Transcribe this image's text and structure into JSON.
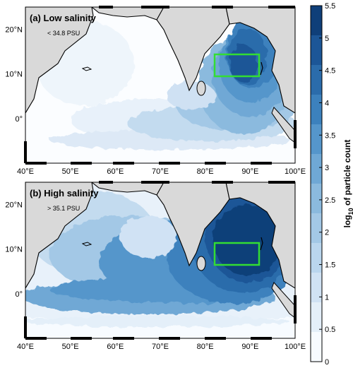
{
  "panels": [
    {
      "id": "a",
      "title": "(a)  Low salinity",
      "subtitle": "< 34.8 PSU",
      "y_tick_labels": [
        "20°N",
        "10°N",
        "0°"
      ],
      "x_tick_labels": [
        "40°E",
        "50°E",
        "60°E",
        "70°E",
        "80°E",
        "90°E",
        "100°E"
      ]
    },
    {
      "id": "b",
      "title": "(b)  High salinity",
      "subtitle": "> 35.1 PSU",
      "y_tick_labels": [
        "20°N",
        "10°N",
        "0°"
      ],
      "x_tick_labels": [
        "40°E",
        "50°E",
        "60°E",
        "70°E",
        "80°E",
        "90°E",
        "100°E"
      ]
    }
  ],
  "colorbar": {
    "label_main": "log",
    "label_sub": "10",
    "label_rest": " of particle count",
    "tick_labels": [
      "5.5",
      "5",
      "4.5",
      "4",
      "3.5",
      "3",
      "2.5",
      "2",
      "1.5",
      "1",
      "0.5",
      "0"
    ],
    "colors": [
      "#f7fbff",
      "#e4eff9",
      "#d0e2f4",
      "#bad6ee",
      "#a3c8e6",
      "#8bbade",
      "#6fa8d5",
      "#5596cb",
      "#3c81bd",
      "#2b6cab",
      "#1c5697",
      "#0f3f79"
    ]
  },
  "map": {
    "box_color": "#33dd33",
    "land_color": "#d9d9d9",
    "lon_range": [
      40,
      100
    ],
    "lat_range": [
      -10,
      25
    ],
    "release_box": {
      "lon": [
        82,
        92
      ],
      "lat": [
        10,
        15
      ]
    }
  }
}
